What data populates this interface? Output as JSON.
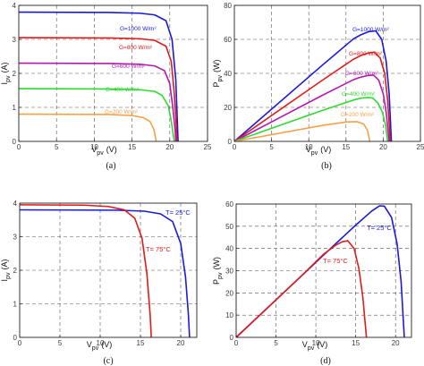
{
  "chart_data": [
    {
      "panel_label": "(a)",
      "type": "line",
      "xlabel_main": "V",
      "xlabel_sub": "pv",
      "xlabel_unit": "(V)",
      "ylabel_main": "I",
      "ylabel_sub": "pv",
      "ylabel_unit": "(A)",
      "xlim": [
        0,
        25
      ],
      "ylim": [
        0,
        4
      ],
      "xticks": [
        "0",
        "5",
        "10",
        "15",
        "20",
        "25"
      ],
      "yticks": [
        "0",
        "1",
        "2",
        "3",
        "4"
      ],
      "grid": "dashed",
      "series": [
        {
          "name": "G=1000 W/m²",
          "color": "#1a1adc",
          "x": [
            0,
            12,
            16,
            18,
            19.5,
            20.3,
            20.8,
            21.0,
            21.1
          ],
          "y": [
            3.8,
            3.79,
            3.77,
            3.72,
            3.55,
            3.0,
            1.8,
            0.6,
            0
          ]
        },
        {
          "name": "G=800 W/m²",
          "color": "#e01a1a",
          "x": [
            0,
            12,
            16,
            18,
            19.5,
            20.2,
            20.6,
            20.85,
            20.95
          ],
          "y": [
            3.05,
            3.04,
            3.02,
            2.97,
            2.8,
            2.35,
            1.4,
            0.5,
            0
          ]
        },
        {
          "name": "G=600 W/m²",
          "color": "#b21ab2",
          "x": [
            0,
            12,
            16,
            18,
            19.3,
            20.0,
            20.4,
            20.7,
            20.8
          ],
          "y": [
            2.3,
            2.29,
            2.27,
            2.22,
            2.08,
            1.7,
            1.0,
            0.35,
            0
          ]
        },
        {
          "name": "G=400 W/m²",
          "color": "#2fd92f",
          "x": [
            0,
            12,
            16,
            18,
            19.0,
            19.8,
            20.2,
            20.45,
            20.6
          ],
          "y": [
            1.55,
            1.54,
            1.52,
            1.47,
            1.35,
            1.05,
            0.6,
            0.2,
            0
          ]
        },
        {
          "name": "G=200 W/m²",
          "color": "#f5a04a",
          "x": [
            0,
            12,
            15,
            16.5,
            17.4,
            17.9,
            18.1,
            18.2
          ],
          "y": [
            0.8,
            0.79,
            0.76,
            0.7,
            0.58,
            0.35,
            0.12,
            0
          ]
        }
      ]
    },
    {
      "panel_label": "(b)",
      "type": "line",
      "xlabel_main": "V",
      "xlabel_sub": "pv",
      "xlabel_unit": "(V)",
      "ylabel_main": "P",
      "ylabel_sub": "pv",
      "ylabel_unit": "(W)",
      "xlim": [
        0,
        25
      ],
      "ylim": [
        0,
        80
      ],
      "xticks": [
        "0",
        "5",
        "10",
        "15",
        "20",
        "25"
      ],
      "yticks": [
        "0",
        "20",
        "40",
        "60",
        "80"
      ],
      "grid": "dashed",
      "series": [
        {
          "name": "G=1000 W/m²",
          "color": "#1a1adc",
          "x": [
            0,
            12,
            16,
            17,
            18,
            19,
            19.8,
            20.4,
            20.8,
            21.1
          ],
          "y": [
            0,
            45.5,
            60.3,
            62.7,
            64.5,
            65.0,
            60.0,
            47.0,
            28.0,
            0
          ]
        },
        {
          "name": "G=800 W/m²",
          "color": "#e01a1a",
          "x": [
            0,
            12,
            16,
            17,
            18,
            18.8,
            19.6,
            20.2,
            20.6,
            20.95
          ],
          "y": [
            0,
            36.5,
            48.3,
            50.5,
            52.0,
            52.5,
            49.0,
            40.0,
            24.0,
            0
          ]
        },
        {
          "name": "G=600 W/m²",
          "color": "#b21ab2",
          "x": [
            0,
            12,
            16,
            17,
            18,
            18.7,
            19.4,
            20.0,
            20.4,
            20.8
          ],
          "y": [
            0,
            27.5,
            36.3,
            37.8,
            38.8,
            39.0,
            36.0,
            28.0,
            17.0,
            0
          ]
        },
        {
          "name": "G=400 W/m²",
          "color": "#2fd92f",
          "x": [
            0,
            12,
            16,
            17,
            17.9,
            18.6,
            19.3,
            19.9,
            20.3,
            20.6
          ],
          "y": [
            0,
            18.5,
            24.3,
            25.4,
            25.8,
            25.5,
            22.5,
            17.0,
            10.0,
            0
          ]
        },
        {
          "name": "G=200 W/m²",
          "color": "#f5a04a",
          "x": [
            0,
            12,
            15,
            16.5,
            17.4,
            17.9,
            18.1,
            18.2
          ],
          "y": [
            0,
            9.5,
            11.4,
            11.6,
            10.1,
            6.3,
            2.2,
            0
          ]
        }
      ]
    },
    {
      "panel_label": "(c)",
      "type": "line",
      "xlabel_main": "V",
      "xlabel_sub": "pv",
      "xlabel_unit": "(V)",
      "ylabel_main": "I",
      "ylabel_sub": "pv",
      "ylabel_unit": "(A)",
      "xlim": [
        0,
        22
      ],
      "ylim": [
        0,
        4
      ],
      "xticks": [
        "0",
        "5",
        "10",
        "15",
        "20"
      ],
      "yticks": [
        "0",
        "1",
        "2",
        "3",
        "4"
      ],
      "grid": "dashed",
      "series": [
        {
          "name": "T= 25°C",
          "color": "#1a1adc",
          "x": [
            0,
            12,
            15.5,
            17.5,
            19.0,
            20.0,
            20.6,
            20.95,
            21.1
          ],
          "y": [
            3.8,
            3.79,
            3.76,
            3.68,
            3.45,
            2.8,
            1.8,
            0.7,
            0
          ]
        },
        {
          "name": "T= 75°C",
          "color": "#e01a1a",
          "x": [
            0,
            8,
            11,
            13,
            14.3,
            15.2,
            15.8,
            16.2,
            16.35
          ],
          "y": [
            3.95,
            3.94,
            3.9,
            3.8,
            3.55,
            2.95,
            1.9,
            0.7,
            0
          ]
        }
      ]
    },
    {
      "panel_label": "(d)",
      "type": "line",
      "xlabel_main": "V",
      "xlabel_sub": "pv",
      "xlabel_unit": "(V)",
      "ylabel_main": "P",
      "ylabel_sub": "pv",
      "ylabel_unit": "(W)",
      "xlim": [
        0,
        22
      ],
      "ylim": [
        0,
        60
      ],
      "xticks": [
        "0",
        "5",
        "10",
        "15",
        "20"
      ],
      "yticks": [
        "0",
        "10",
        "20",
        "30",
        "40",
        "50",
        "60"
      ],
      "grid": "dashed",
      "series": [
        {
          "name": "T= 25°C",
          "color": "#1a1adc",
          "x": [
            0,
            12,
            15,
            17,
            18,
            18.6,
            19.5,
            20.2,
            20.7,
            21.1
          ],
          "y": [
            0,
            40.5,
            50.5,
            56.8,
            59.2,
            59.0,
            54.0,
            42.0,
            25.0,
            0
          ]
        },
        {
          "name": "T= 75°C",
          "color": "#e01a1a",
          "x": [
            0,
            8,
            11,
            12.5,
            13.3,
            14.0,
            14.8,
            15.4,
            15.9,
            16.35
          ],
          "y": [
            0,
            27.0,
            37.5,
            41.5,
            43.0,
            43.5,
            40.0,
            31.0,
            18.0,
            0
          ]
        }
      ]
    }
  ]
}
